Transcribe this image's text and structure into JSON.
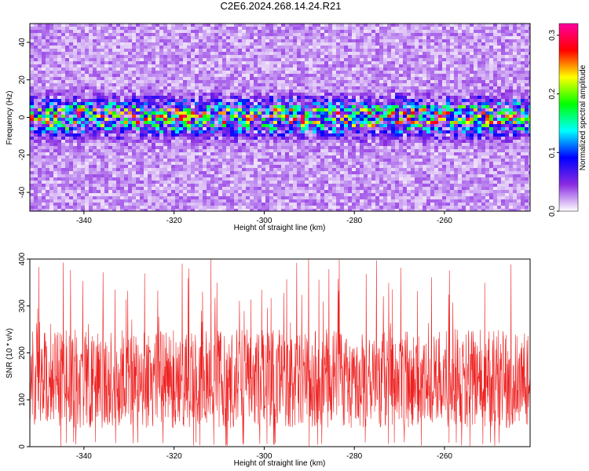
{
  "title": "C2E6.2024.268.14.24.R21",
  "chart_data": [
    {
      "type": "heatmap",
      "xlabel": "Height of straight line (km)",
      "ylabel": "Frequency (Hz)",
      "xlim": [
        -352,
        -241
      ],
      "ylim": [
        -50,
        50
      ],
      "xticks": [
        -340,
        -320,
        -300,
        -280,
        -260
      ],
      "yticks": [
        -40,
        -20,
        0,
        20,
        40
      ],
      "colorbar": {
        "label": "Normalized spectral amplitude",
        "range": [
          0.0,
          0.32
        ],
        "ticks": [
          0.0,
          0.1,
          0.2,
          0.3
        ],
        "colors": [
          "#ffffff",
          "#8a2be2",
          "#0000ff",
          "#00ffff",
          "#00ff00",
          "#ffff00",
          "#ff0000",
          "#ff00a0"
        ]
      },
      "features": {
        "band_center_hz": 0,
        "band_halfwidth_hz": 8,
        "band_peak_amplitude": 0.3,
        "background_amplitude": 0.02
      }
    },
    {
      "type": "line",
      "xlabel": "Height of straight line (km)",
      "ylabel": "SNR (10 * v/v)",
      "xlim": [
        -352,
        -241
      ],
      "ylim": [
        0,
        400
      ],
      "xticks": [
        -340,
        -320,
        -300,
        -280,
        -260
      ],
      "yticks": [
        0,
        100,
        200,
        300,
        400
      ],
      "series": [
        {
          "color": "#ee2222",
          "summary": {
            "typical_min": 40,
            "typical_max": 250,
            "peak_max": 400
          }
        }
      ]
    }
  ]
}
